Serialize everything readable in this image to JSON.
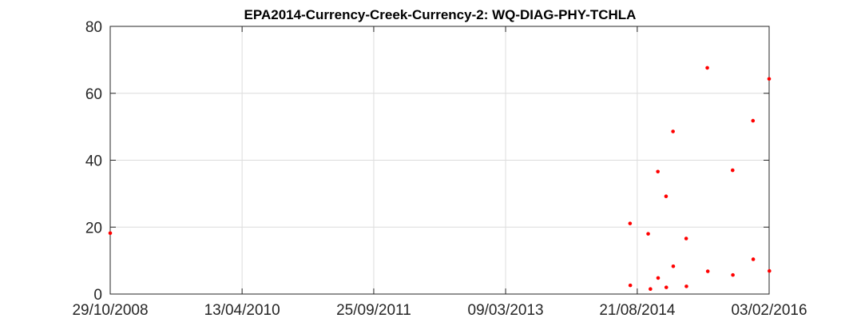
{
  "chart_data": {
    "type": "scatter",
    "title": "EPA2014-Currency-Creek-Currency-2: WQ-DIAG-PHY-TCHLA",
    "xlabel": "",
    "ylabel": "",
    "x_axis_type": "date",
    "xlim": [
      "29/10/2008",
      "03/02/2016"
    ],
    "ylim": [
      0,
      80
    ],
    "x_ticks": [
      "29/10/2008",
      "13/04/2010",
      "25/09/2011",
      "09/03/2013",
      "21/08/2014",
      "03/02/2016"
    ],
    "y_ticks": [
      0,
      20,
      40,
      60,
      80
    ],
    "grid": true,
    "legend": "none",
    "marker_color": "#ff0000",
    "points": [
      {
        "x": "29/10/2008",
        "y": 18.2
      },
      {
        "x": "23/07/2014",
        "y": 21.1
      },
      {
        "x": "24/07/2014",
        "y": 2.6
      },
      {
        "x": "04/10/2014",
        "y": 18.0
      },
      {
        "x": "13/10/2014",
        "y": 1.5
      },
      {
        "x": "12/11/2014",
        "y": 36.6
      },
      {
        "x": "13/11/2014",
        "y": 4.8
      },
      {
        "x": "15/12/2014",
        "y": 29.2
      },
      {
        "x": "16/12/2014",
        "y": 2.0
      },
      {
        "x": "12/01/2015",
        "y": 48.6
      },
      {
        "x": "13/01/2015",
        "y": 8.3
      },
      {
        "x": "06/03/2015",
        "y": 16.6
      },
      {
        "x": "07/03/2015",
        "y": 2.3
      },
      {
        "x": "30/05/2015",
        "y": 67.6
      },
      {
        "x": "01/06/2015",
        "y": 6.8
      },
      {
        "x": "09/09/2015",
        "y": 37.0
      },
      {
        "x": "10/09/2015",
        "y": 5.7
      },
      {
        "x": "30/11/2015",
        "y": 51.8
      },
      {
        "x": "01/12/2015",
        "y": 10.4
      },
      {
        "x": "03/02/2016",
        "y": 64.3
      },
      {
        "x": "04/02/2016",
        "y": 6.9
      }
    ]
  }
}
